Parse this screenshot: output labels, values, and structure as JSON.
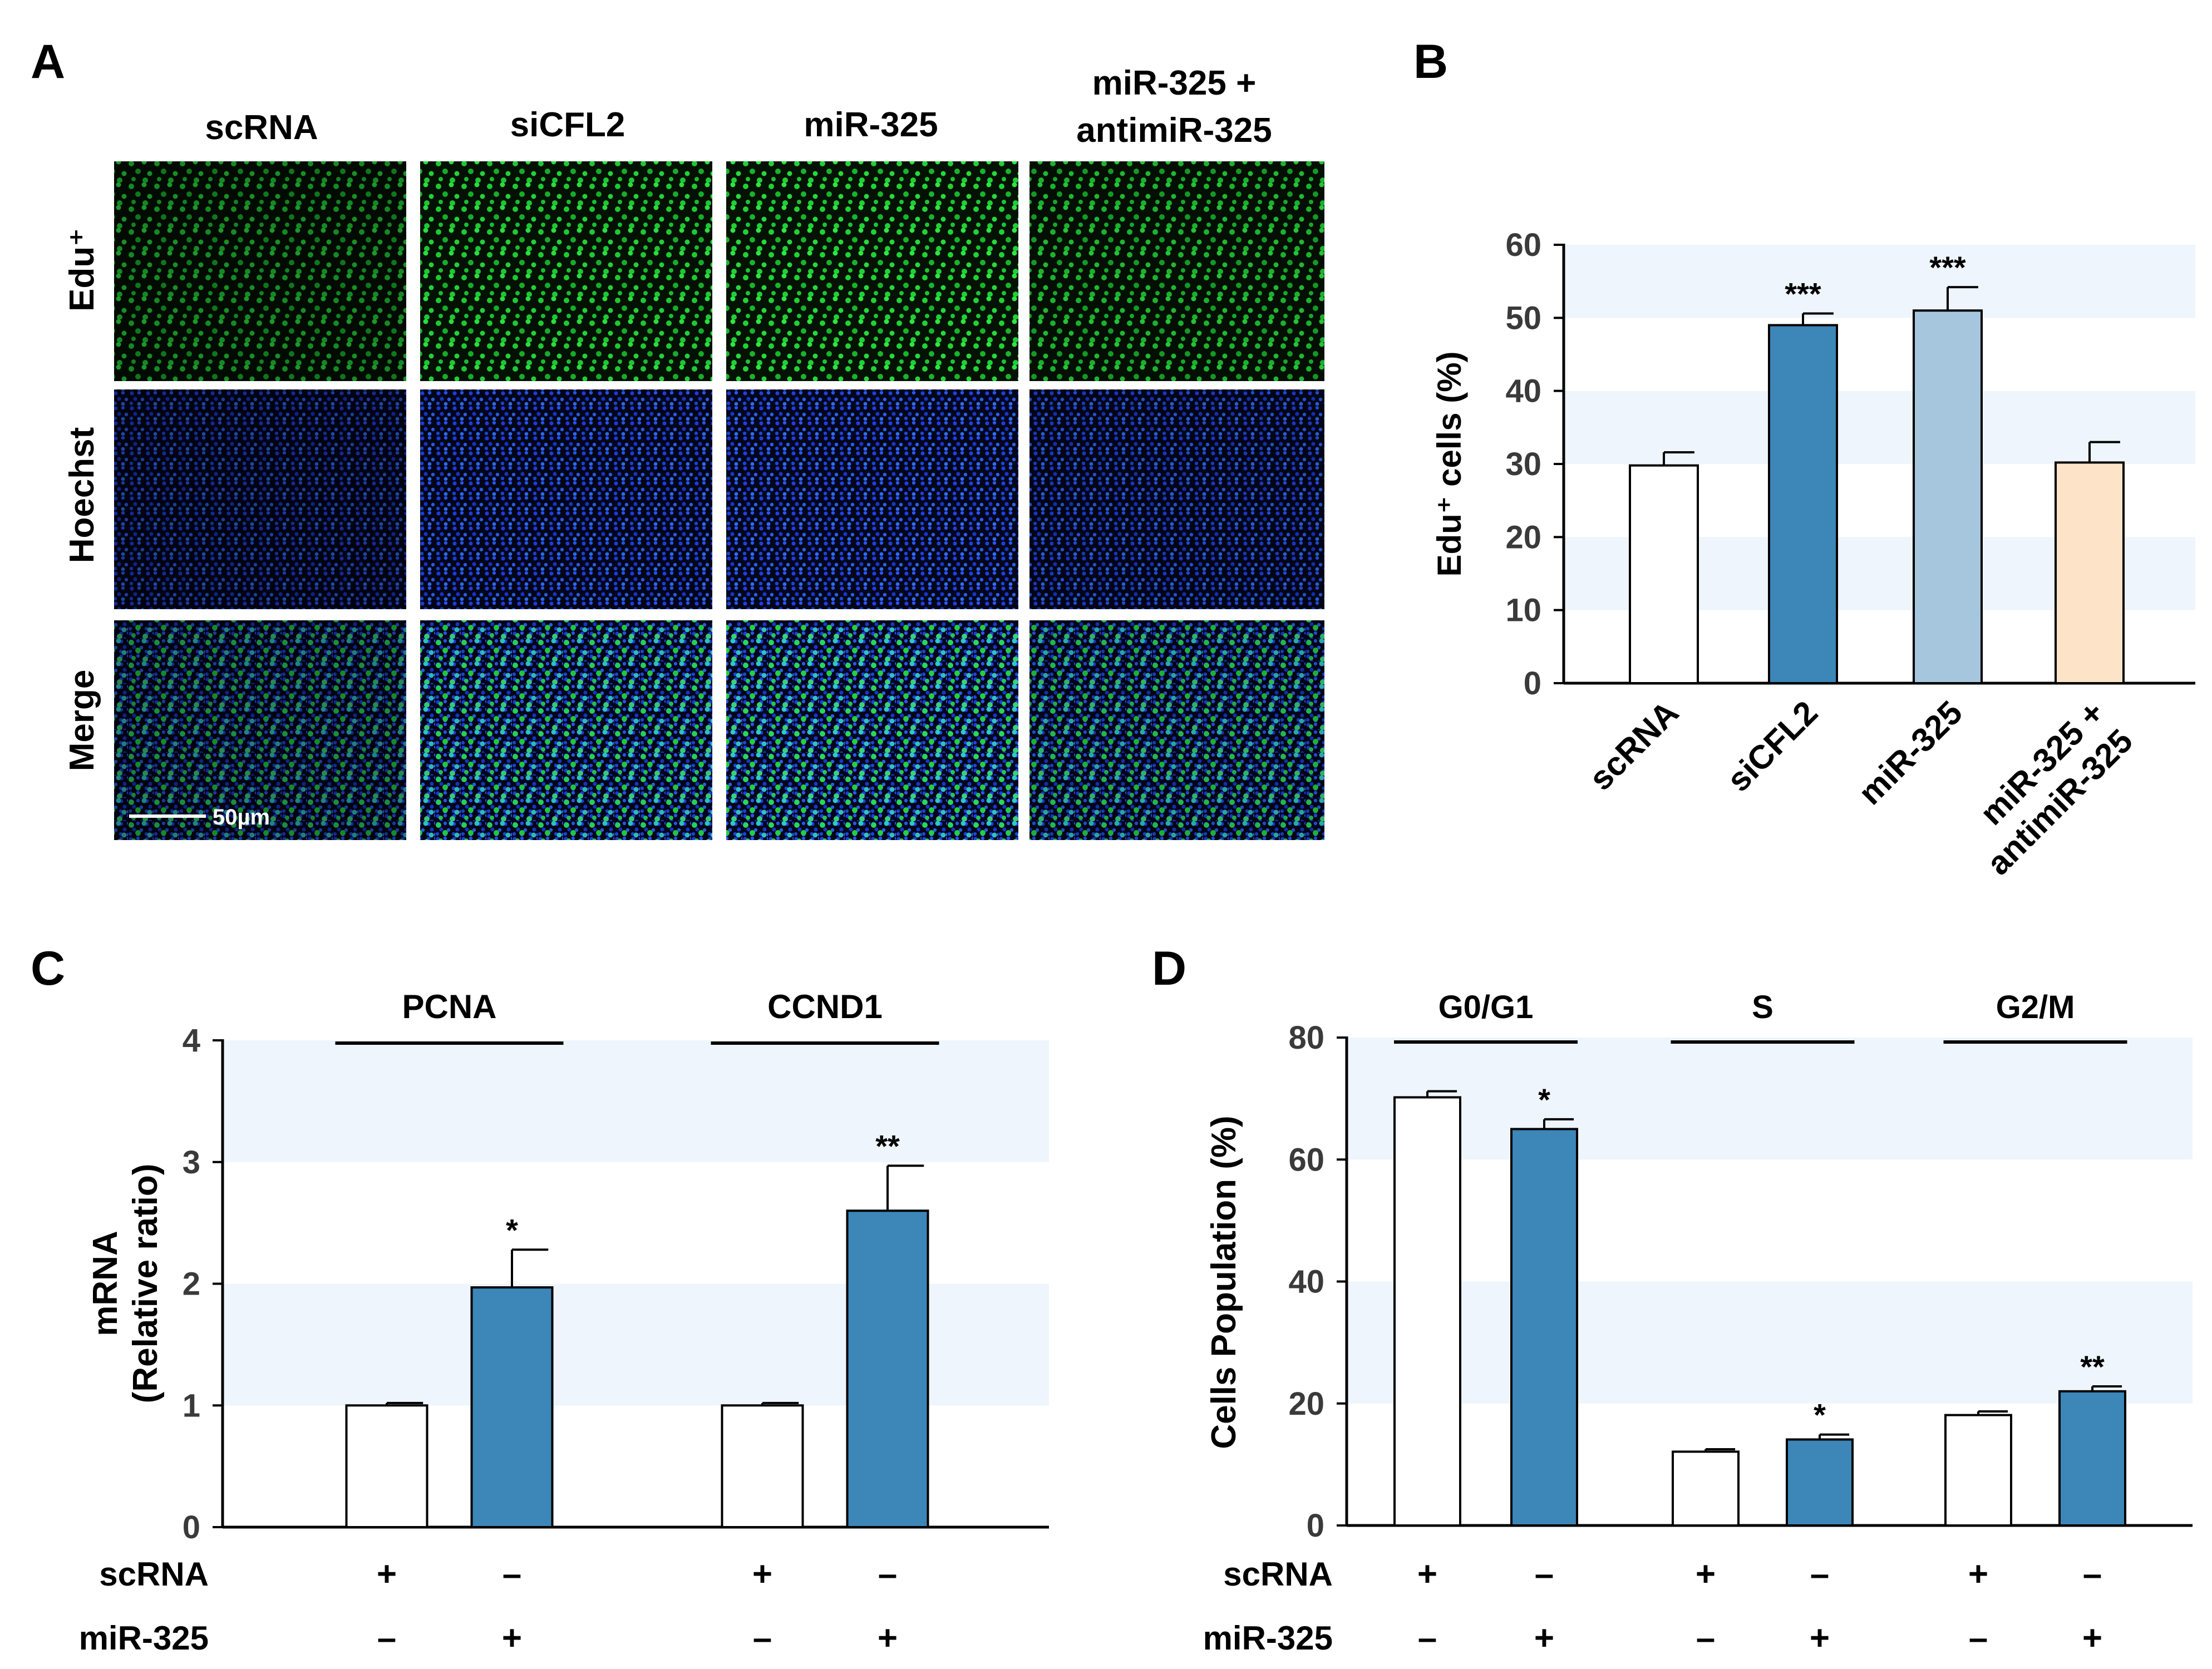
{
  "panel_labels": [
    "A",
    "B",
    "C",
    "D"
  ],
  "colors": {
    "green_stain": "#1fd235",
    "blue_stain": "#1f3ee0",
    "merge_stain": "#2ec8c8",
    "bar_white": "#ffffff",
    "bar_blue": "#3c86b8",
    "bar_lightblue": "#a6c6de",
    "bar_peach": "#fde4c9",
    "band": "#eef5fc"
  },
  "panelA": {
    "columns": [
      "scRNA",
      "siCFL2",
      "miR-325",
      "miR-325 +",
      "antimiR-325"
    ],
    "rows": [
      "Edu⁺",
      "Hoechst",
      "Merge"
    ],
    "scale_bar": "50µm"
  },
  "chart_data": [
    {
      "panel": "B",
      "type": "bar",
      "categories": [
        "scRNA",
        "siCFL2",
        "miR-325",
        "miR-325 + antimiR-325"
      ],
      "category_lines": [
        [
          "scRNA"
        ],
        [
          "siCFL2"
        ],
        [
          "miR-325"
        ],
        [
          "miR-325 +",
          "antimiR-325"
        ]
      ],
      "values": [
        29.8,
        49.0,
        51.0,
        30.2
      ],
      "errors": [
        1.8,
        1.6,
        3.2,
        2.8
      ],
      "significance": [
        "",
        "***",
        "***",
        ""
      ],
      "bar_colors": [
        "#ffffff",
        "#3c86b8",
        "#a6c6de",
        "#fde4c9"
      ],
      "ylabel": "Edu⁺ cells (%)",
      "ylim": [
        0,
        60
      ],
      "yticks": [
        "0",
        "10",
        "20",
        "30",
        "40",
        "50",
        "60"
      ],
      "grid": "alternating horizontal bands"
    },
    {
      "panel": "C",
      "type": "bar",
      "groups": [
        "PCNA",
        "CCND1"
      ],
      "series": [
        {
          "values": [
            1.0,
            1.0
          ],
          "errors": [
            0.02,
            0.02
          ],
          "significance": [
            "",
            ""
          ]
        },
        {
          "values": [
            1.97,
            2.6
          ],
          "errors": [
            0.31,
            0.37
          ],
          "significance": [
            "*",
            "**"
          ]
        }
      ],
      "ylabel_lines": [
        "mRNA",
        "(Relative ratio)"
      ],
      "ylim": [
        0,
        4
      ],
      "yticks": [
        "0",
        "1",
        "2",
        "3",
        "4"
      ],
      "condition_rows": [
        {
          "label": "scRNA",
          "signs": [
            "+",
            "–",
            "+",
            "–"
          ]
        },
        {
          "label": "miR-325",
          "signs": [
            "–",
            "+",
            "–",
            "+"
          ]
        }
      ],
      "grid": "alternating horizontal bands"
    },
    {
      "panel": "D",
      "type": "bar",
      "groups": [
        "G0/G1",
        "S",
        "G2/M"
      ],
      "series": [
        {
          "values": [
            70.2,
            12.1,
            18.1
          ],
          "errors": [
            1.0,
            0.4,
            0.6
          ],
          "significance": [
            "",
            "",
            ""
          ]
        },
        {
          "values": [
            65.0,
            14.1,
            22.0
          ],
          "errors": [
            1.6,
            0.8,
            0.8
          ],
          "significance": [
            "*",
            "*",
            "**"
          ]
        }
      ],
      "ylabel": "Cells Population (%)",
      "ylim": [
        0,
        80
      ],
      "yticks": [
        "0",
        "20",
        "40",
        "60",
        "80"
      ],
      "condition_rows": [
        {
          "label": "scRNA",
          "signs": [
            "+",
            "–",
            "+",
            "–",
            "+",
            "–"
          ]
        },
        {
          "label": "miR-325",
          "signs": [
            "–",
            "+",
            "–",
            "+",
            "–",
            "+"
          ]
        }
      ],
      "grid": "alternating horizontal bands"
    }
  ]
}
